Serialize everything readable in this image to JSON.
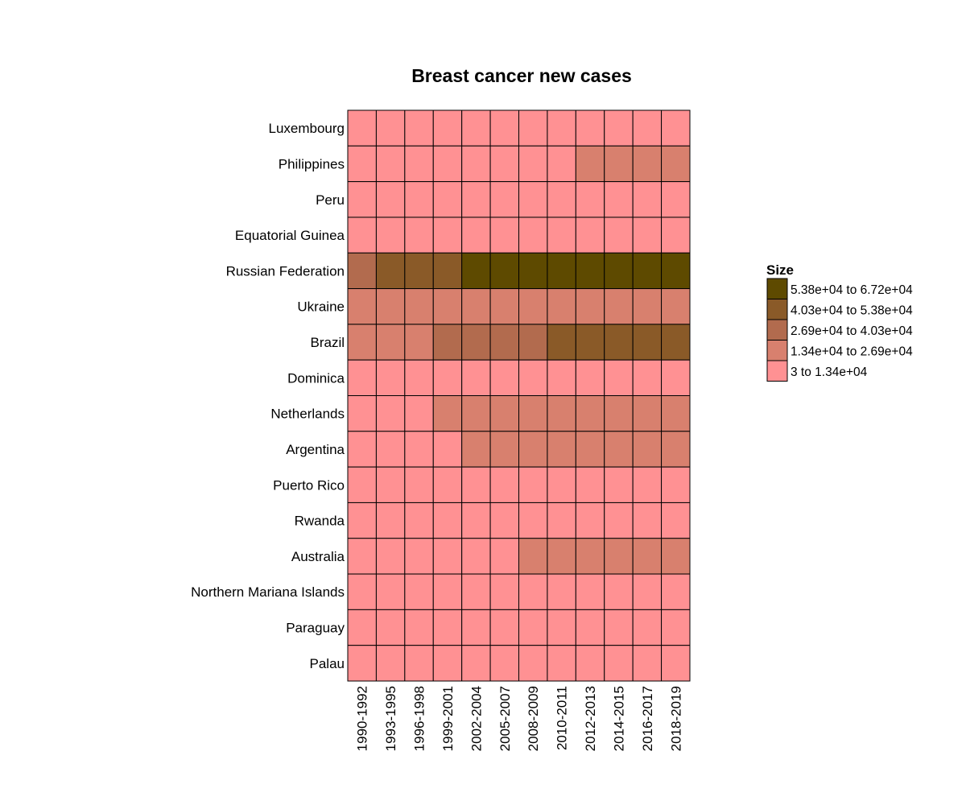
{
  "chart_data": {
    "type": "heatmap",
    "title": "Breast cancer new cases",
    "xlabel": "",
    "ylabel": "",
    "x_categories": [
      "1990-1992",
      "1993-1995",
      "1996-1998",
      "1999-2001",
      "2002-2004",
      "2005-2007",
      "2008-2009",
      "2010-2011",
      "2012-2013",
      "2014-2015",
      "2016-2017",
      "2018-2019"
    ],
    "y_categories": [
      "Luxembourg",
      "Philippines",
      "Peru",
      "Equatorial Guinea",
      "Russian Federation",
      "Ukraine",
      "Brazil",
      "Dominica",
      "Netherlands",
      "Argentina",
      "Puerto Rico",
      "Rwanda",
      "Australia",
      "Northern Mariana Islands",
      "Paraguay",
      "Palau"
    ],
    "legend": {
      "title": "Size",
      "placement": "right",
      "bins": [
        {
          "label": "5.38e+04 to 6.72e+04",
          "color": "#5e4a00"
        },
        {
          "label": "4.03e+04 to 5.38e+04",
          "color": "#8a5a28"
        },
        {
          "label": "2.69e+04 to 4.03e+04",
          "color": "#b26b4e"
        },
        {
          "label": "1.34e+04 to 2.69e+04",
          "color": "#d8806e"
        },
        {
          "label": "3 to 1.34e+04",
          "color": "#ff9193"
        }
      ]
    },
    "bin_values": [
      [
        0,
        0,
        0,
        0,
        0,
        0,
        0,
        0,
        0,
        0,
        0,
        0
      ],
      [
        0,
        0,
        0,
        0,
        0,
        0,
        0,
        0,
        1,
        1,
        1,
        1
      ],
      [
        0,
        0,
        0,
        0,
        0,
        0,
        0,
        0,
        0,
        0,
        0,
        0
      ],
      [
        0,
        0,
        0,
        0,
        0,
        0,
        0,
        0,
        0,
        0,
        0,
        0
      ],
      [
        2,
        3,
        3,
        3,
        4,
        4,
        4,
        4,
        4,
        4,
        4,
        4
      ],
      [
        1,
        1,
        1,
        1,
        1,
        1,
        1,
        1,
        1,
        1,
        1,
        1
      ],
      [
        1,
        1,
        1,
        2,
        2,
        2,
        2,
        3,
        3,
        3,
        3,
        3
      ],
      [
        0,
        0,
        0,
        0,
        0,
        0,
        0,
        0,
        0,
        0,
        0,
        0
      ],
      [
        0,
        0,
        0,
        1,
        1,
        1,
        1,
        1,
        1,
        1,
        1,
        1
      ],
      [
        0,
        0,
        0,
        0,
        1,
        1,
        1,
        1,
        1,
        1,
        1,
        1
      ],
      [
        0,
        0,
        0,
        0,
        0,
        0,
        0,
        0,
        0,
        0,
        0,
        0
      ],
      [
        0,
        0,
        0,
        0,
        0,
        0,
        0,
        0,
        0,
        0,
        0,
        0
      ],
      [
        0,
        0,
        0,
        0,
        0,
        0,
        1,
        1,
        1,
        1,
        1,
        1
      ],
      [
        0,
        0,
        0,
        0,
        0,
        0,
        0,
        0,
        0,
        0,
        0,
        0
      ],
      [
        0,
        0,
        0,
        0,
        0,
        0,
        0,
        0,
        0,
        0,
        0,
        0
      ],
      [
        0,
        0,
        0,
        0,
        0,
        0,
        0,
        0,
        0,
        0,
        0,
        0
      ]
    ]
  }
}
